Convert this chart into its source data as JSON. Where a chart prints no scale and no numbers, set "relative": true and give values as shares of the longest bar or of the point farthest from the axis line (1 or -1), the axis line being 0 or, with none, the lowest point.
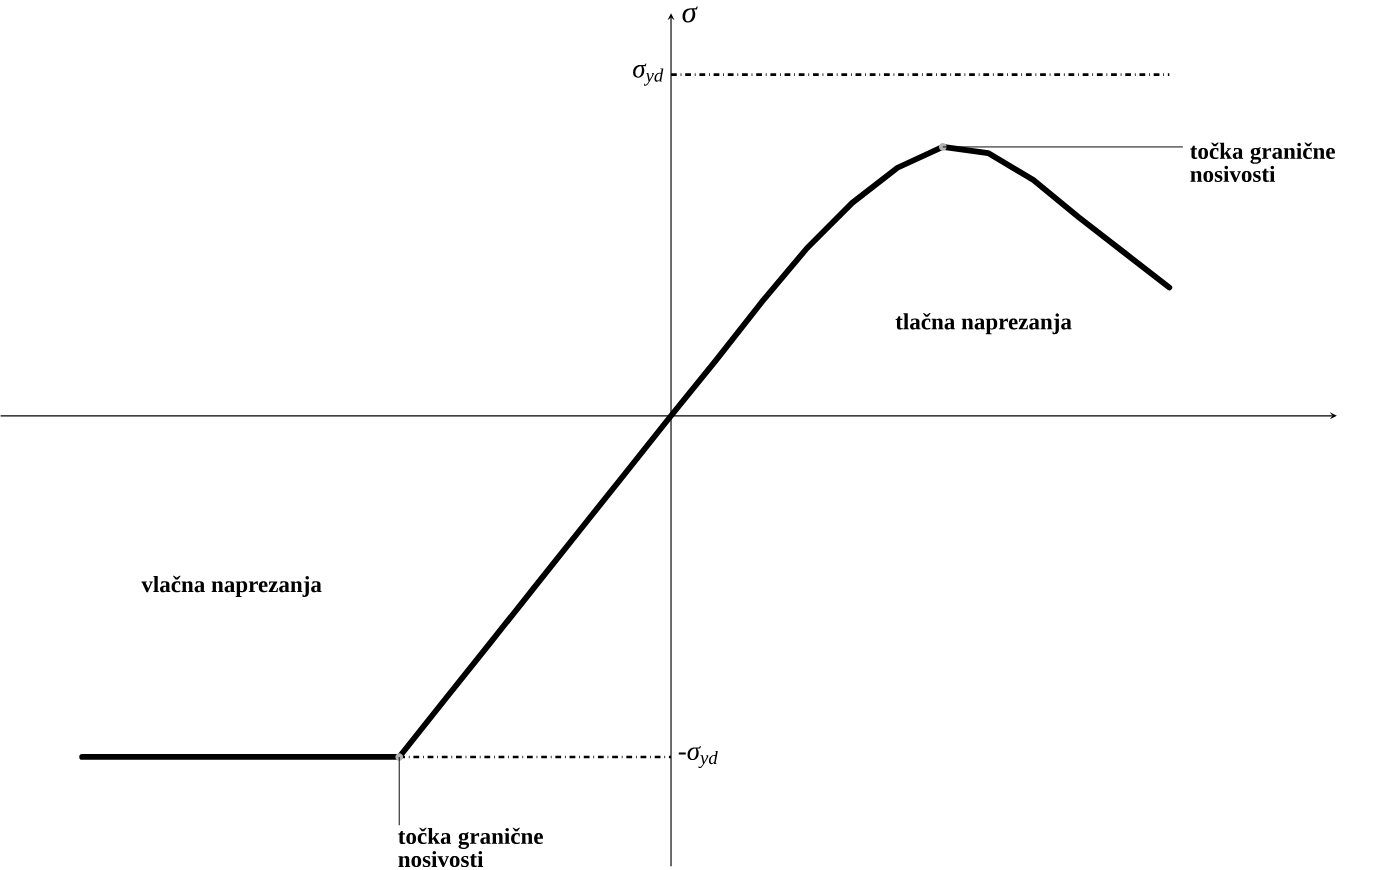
{
  "chart_data": {
    "type": "line",
    "relative": true,
    "ylabel": "σ",
    "categories": [
      null,
      null,
      null,
      null,
      null,
      null,
      null,
      null,
      null,
      null,
      null,
      null,
      null,
      null,
      null,
      null,
      null,
      null,
      null,
      null,
      null,
      null,
      null,
      null,
      null
    ],
    "series": [
      {
        "color": "#000000",
        "values": [
          -1,
          -1,
          -1,
          -1,
          -1,
          -1,
          -1,
          -1,
          -0.833,
          -0.667,
          -0.5,
          -0.333,
          -0.167,
          0,
          0.164,
          0.333,
          0.491,
          0.624,
          0.727,
          0.788,
          0.77,
          0.691,
          0.582,
          0.479,
          0.376
        ]
      }
    ],
    "ref_lines": [
      {
        "axis": "y",
        "value": 1,
        "label": "σ$_{yd}$",
        "color": "#000000",
        "line_style": "dashdot"
      },
      {
        "axis": "y",
        "value": -1,
        "label": "-σ$_{yd}$",
        "color": "#000000",
        "line_style": "dashdot"
      }
    ],
    "annotations": [
      "točka granične nosivosti",
      "točka granične nosivosti",
      "tlačna naprezanja",
      "vlačna naprezanja"
    ]
  }
}
